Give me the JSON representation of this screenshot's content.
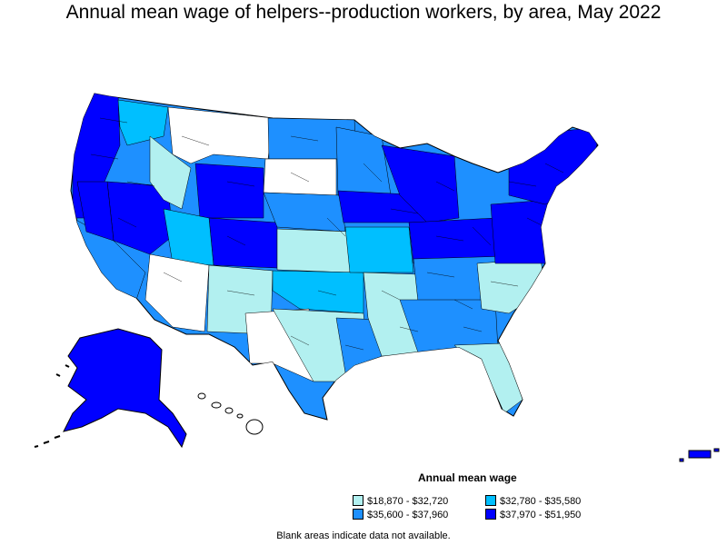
{
  "title": "Annual mean wage of helpers--production workers, by area, May 2022",
  "legend": {
    "title": "Annual mean wage",
    "items": [
      {
        "label": "$18,870 - $32,720",
        "color": "#b2f0f0"
      },
      {
        "label": "$32,780 - $35,580",
        "color": "#00bfff"
      },
      {
        "label": "$35,600 - $37,960",
        "color": "#1e90ff"
      },
      {
        "label": "$37,970 - $51,950",
        "color": "#0000ff"
      }
    ]
  },
  "footnote": "Blank areas indicate data not available.",
  "colors": {
    "no_data": "#ffffff",
    "border": "#000000"
  }
}
